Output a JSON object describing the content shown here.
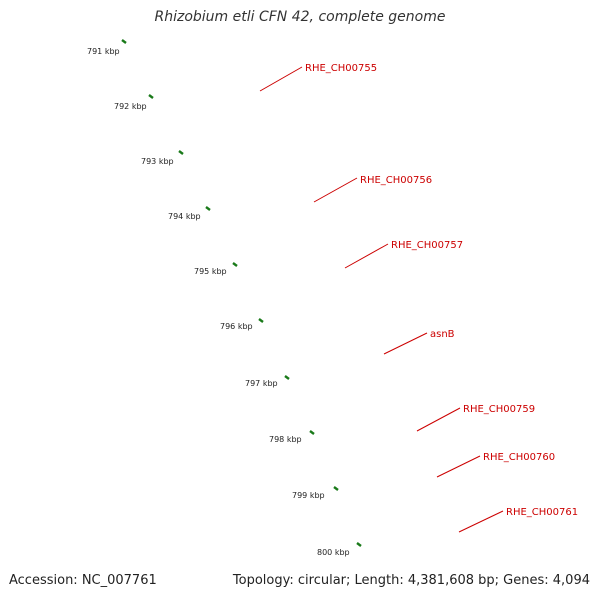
{
  "title": "Rhizobium etli CFN 42, complete genome",
  "footer": {
    "accession": "Accession: NC_007761",
    "summary": "Topology: circular; Length: 4,381,608 bp; Genes: 4,094"
  },
  "colors": {
    "background": "#ffffff",
    "cds_red": "#ee0000",
    "cds_red_light": "#ff5a5a",
    "backbone_grey": "#8a8a8a",
    "feature_grey": "#c4c4c4",
    "feature_olive": "#7a9a2a",
    "feature_blue": "#4f86c0",
    "feature_cyan": "#22cfd8",
    "tick_green": "#1a7a1a",
    "label_red": "#cc0000"
  },
  "kbp_ticks": [
    "791 kbp",
    "792 kbp",
    "793 kbp",
    "794 kbp",
    "795 kbp",
    "796 kbp",
    "797 kbp",
    "798 kbp",
    "799 kbp",
    "800 kbp"
  ],
  "genes": [
    {
      "label": "RHE_CH00755",
      "color": "feature_grey"
    },
    {
      "label": "RHE_CH00756",
      "color": "feature_olive"
    },
    {
      "label": "RHE_CH00757",
      "color": "feature_olive"
    },
    {
      "label": "asnB",
      "color": "feature_blue"
    },
    {
      "label": "RHE_CH00759",
      "color": "cds_red"
    },
    {
      "label": "RHE_CH00760",
      "color": "feature_cyan"
    },
    {
      "label": "RHE_CH00761",
      "color": "feature_olive"
    }
  ]
}
